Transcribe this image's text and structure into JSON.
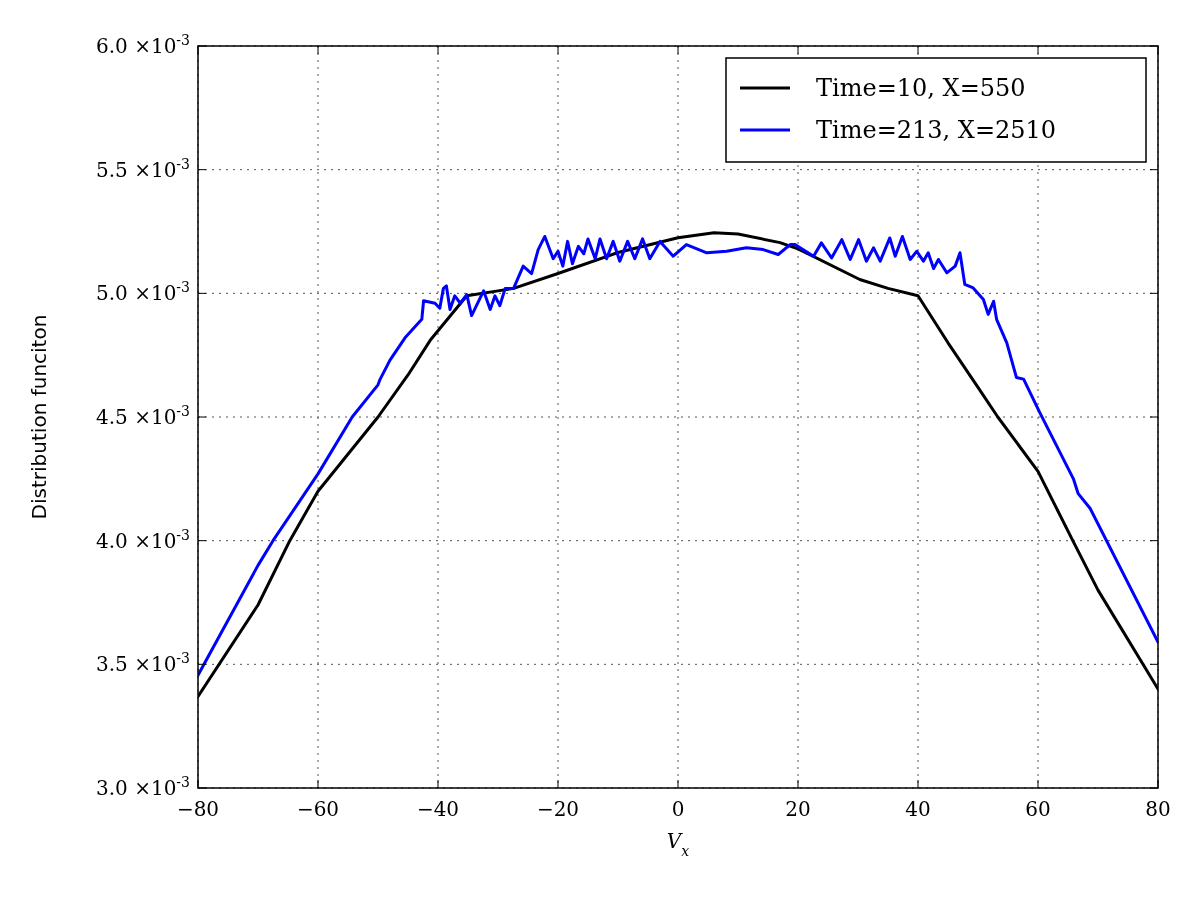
{
  "chart_data": {
    "type": "line",
    "xlabel": "V$_{x}$",
    "ylabel": "Distribution funciton",
    "xlim": [
      -80,
      80
    ],
    "ylim": [
      0.003,
      0.006
    ],
    "xticks": [
      {
        "value": -80,
        "label": "−80"
      },
      {
        "value": -60,
        "label": "−60"
      },
      {
        "value": -40,
        "label": "−40"
      },
      {
        "value": -20,
        "label": "−20"
      },
      0,
      20,
      40,
      60,
      80
    ],
    "yticks": [
      {
        "value": 0.003,
        "label": "3.0 ×10$^{-3}$"
      },
      {
        "value": 0.0035,
        "label": "3.5 ×10$^{-3}$"
      },
      {
        "value": 0.004,
        "label": "4.0 ×10$^{-3}$"
      },
      {
        "value": 0.0045,
        "label": "4.5 ×10$^{-3}$"
      },
      {
        "value": 0.005,
        "label": "5.0 ×10$^{-3}$"
      },
      {
        "value": 0.0055,
        "label": "5.5 ×10$^{-3}$"
      },
      {
        "value": 0.006,
        "label": "6.0 ×10$^{-3}$"
      }
    ],
    "grid": true,
    "legend": "top right",
    "line_style": "solid",
    "marker": "none",
    "series": [
      {
        "name": "Time=10,   X=550",
        "color": "#000000",
        "x": [
          -80,
          -70,
          -64.7,
          -60,
          -50,
          -45,
          -41.3,
          -35.2,
          -30,
          -27.4,
          -20,
          -10,
          0,
          6,
          10,
          17,
          20,
          30.3,
          35,
          40,
          45,
          50,
          53.3,
          60,
          65.8,
          70,
          77.5,
          80
        ],
        "values": [
          0.00337,
          0.00374,
          0.004,
          0.0042,
          0.0045,
          0.00467,
          0.00481,
          0.00499,
          0.00501,
          0.00502,
          0.00508,
          0.005165,
          0.005225,
          0.005245,
          0.00524,
          0.005205,
          0.00518,
          0.005056,
          0.00502,
          0.00499,
          0.0048,
          0.00462,
          0.0045,
          0.00428,
          0.004,
          0.0038,
          0.0035,
          0.0034
        ]
      },
      {
        "name": "Time=213,   X=2510",
        "color": "#0000ff",
        "x": [
          -80,
          -70,
          -67.5,
          -62.5,
          -60,
          -54.3,
          -50,
          -49.7,
          -48,
          -45.5,
          -42.7,
          -42.4,
          -40.5,
          -39.7,
          -39.1,
          -38.6,
          -38,
          -37.2,
          -36.3,
          -35.2,
          -34.4,
          -32.4,
          -31.3,
          -30.5,
          -29.7,
          -28.8,
          -27.4,
          -25.8,
          -24.4,
          -23.3,
          -22.2,
          -20.8,
          -20,
          -19.2,
          -18.4,
          -17.6,
          -16.6,
          -15.7,
          -15,
          -13.8,
          -13,
          -11.9,
          -10.8,
          -9.7,
          -8.4,
          -7.2,
          -5.9,
          -4.7,
          -3,
          -0.8,
          1.4,
          4.8,
          8.1,
          11.4,
          14.2,
          16.7,
          18.7,
          19.5,
          22.6,
          23.9,
          25.6,
          27.3,
          28.7,
          30.1,
          31.4,
          32.6,
          33.7,
          35.3,
          36.2,
          37.4,
          38.7,
          39.8,
          40.9,
          41.7,
          42.6,
          43.4,
          44.8,
          46.2,
          47,
          47.8,
          49.2,
          50.9,
          51.7,
          52.6,
          53.1,
          54.8,
          56.4,
          57.6,
          60.3,
          65.9,
          66.7,
          68.7,
          80
        ],
        "values": [
          0.003456,
          0.0039,
          0.004,
          0.00418,
          0.00427,
          0.0045,
          0.00463,
          0.00465,
          0.00473,
          0.00482,
          0.004895,
          0.00497,
          0.00496,
          0.00494,
          0.00502,
          0.00503,
          0.004935,
          0.00499,
          0.00496,
          0.004995,
          0.00491,
          0.00501,
          0.004935,
          0.00499,
          0.00495,
          0.00502,
          0.00502,
          0.00511,
          0.00508,
          0.005177,
          0.00523,
          0.00514,
          0.00517,
          0.00511,
          0.00521,
          0.00512,
          0.00519,
          0.00516,
          0.00522,
          0.00514,
          0.00522,
          0.00514,
          0.00521,
          0.00513,
          0.00521,
          0.00514,
          0.00522,
          0.00514,
          0.00521,
          0.00515,
          0.005197,
          0.005164,
          0.00517,
          0.005184,
          0.005177,
          0.005157,
          0.005197,
          0.005197,
          0.00515,
          0.005204,
          0.005143,
          0.005217,
          0.005137,
          0.005217,
          0.00513,
          0.005184,
          0.00513,
          0.005224,
          0.00515,
          0.00523,
          0.005137,
          0.00517,
          0.00513,
          0.005164,
          0.0051,
          0.005137,
          0.005083,
          0.00511,
          0.005164,
          0.005036,
          0.005022,
          0.004975,
          0.004915,
          0.004968,
          0.004895,
          0.0048,
          0.00466,
          0.004653,
          0.004518,
          0.00425,
          0.00419,
          0.00413,
          0.00359
        ]
      }
    ]
  }
}
